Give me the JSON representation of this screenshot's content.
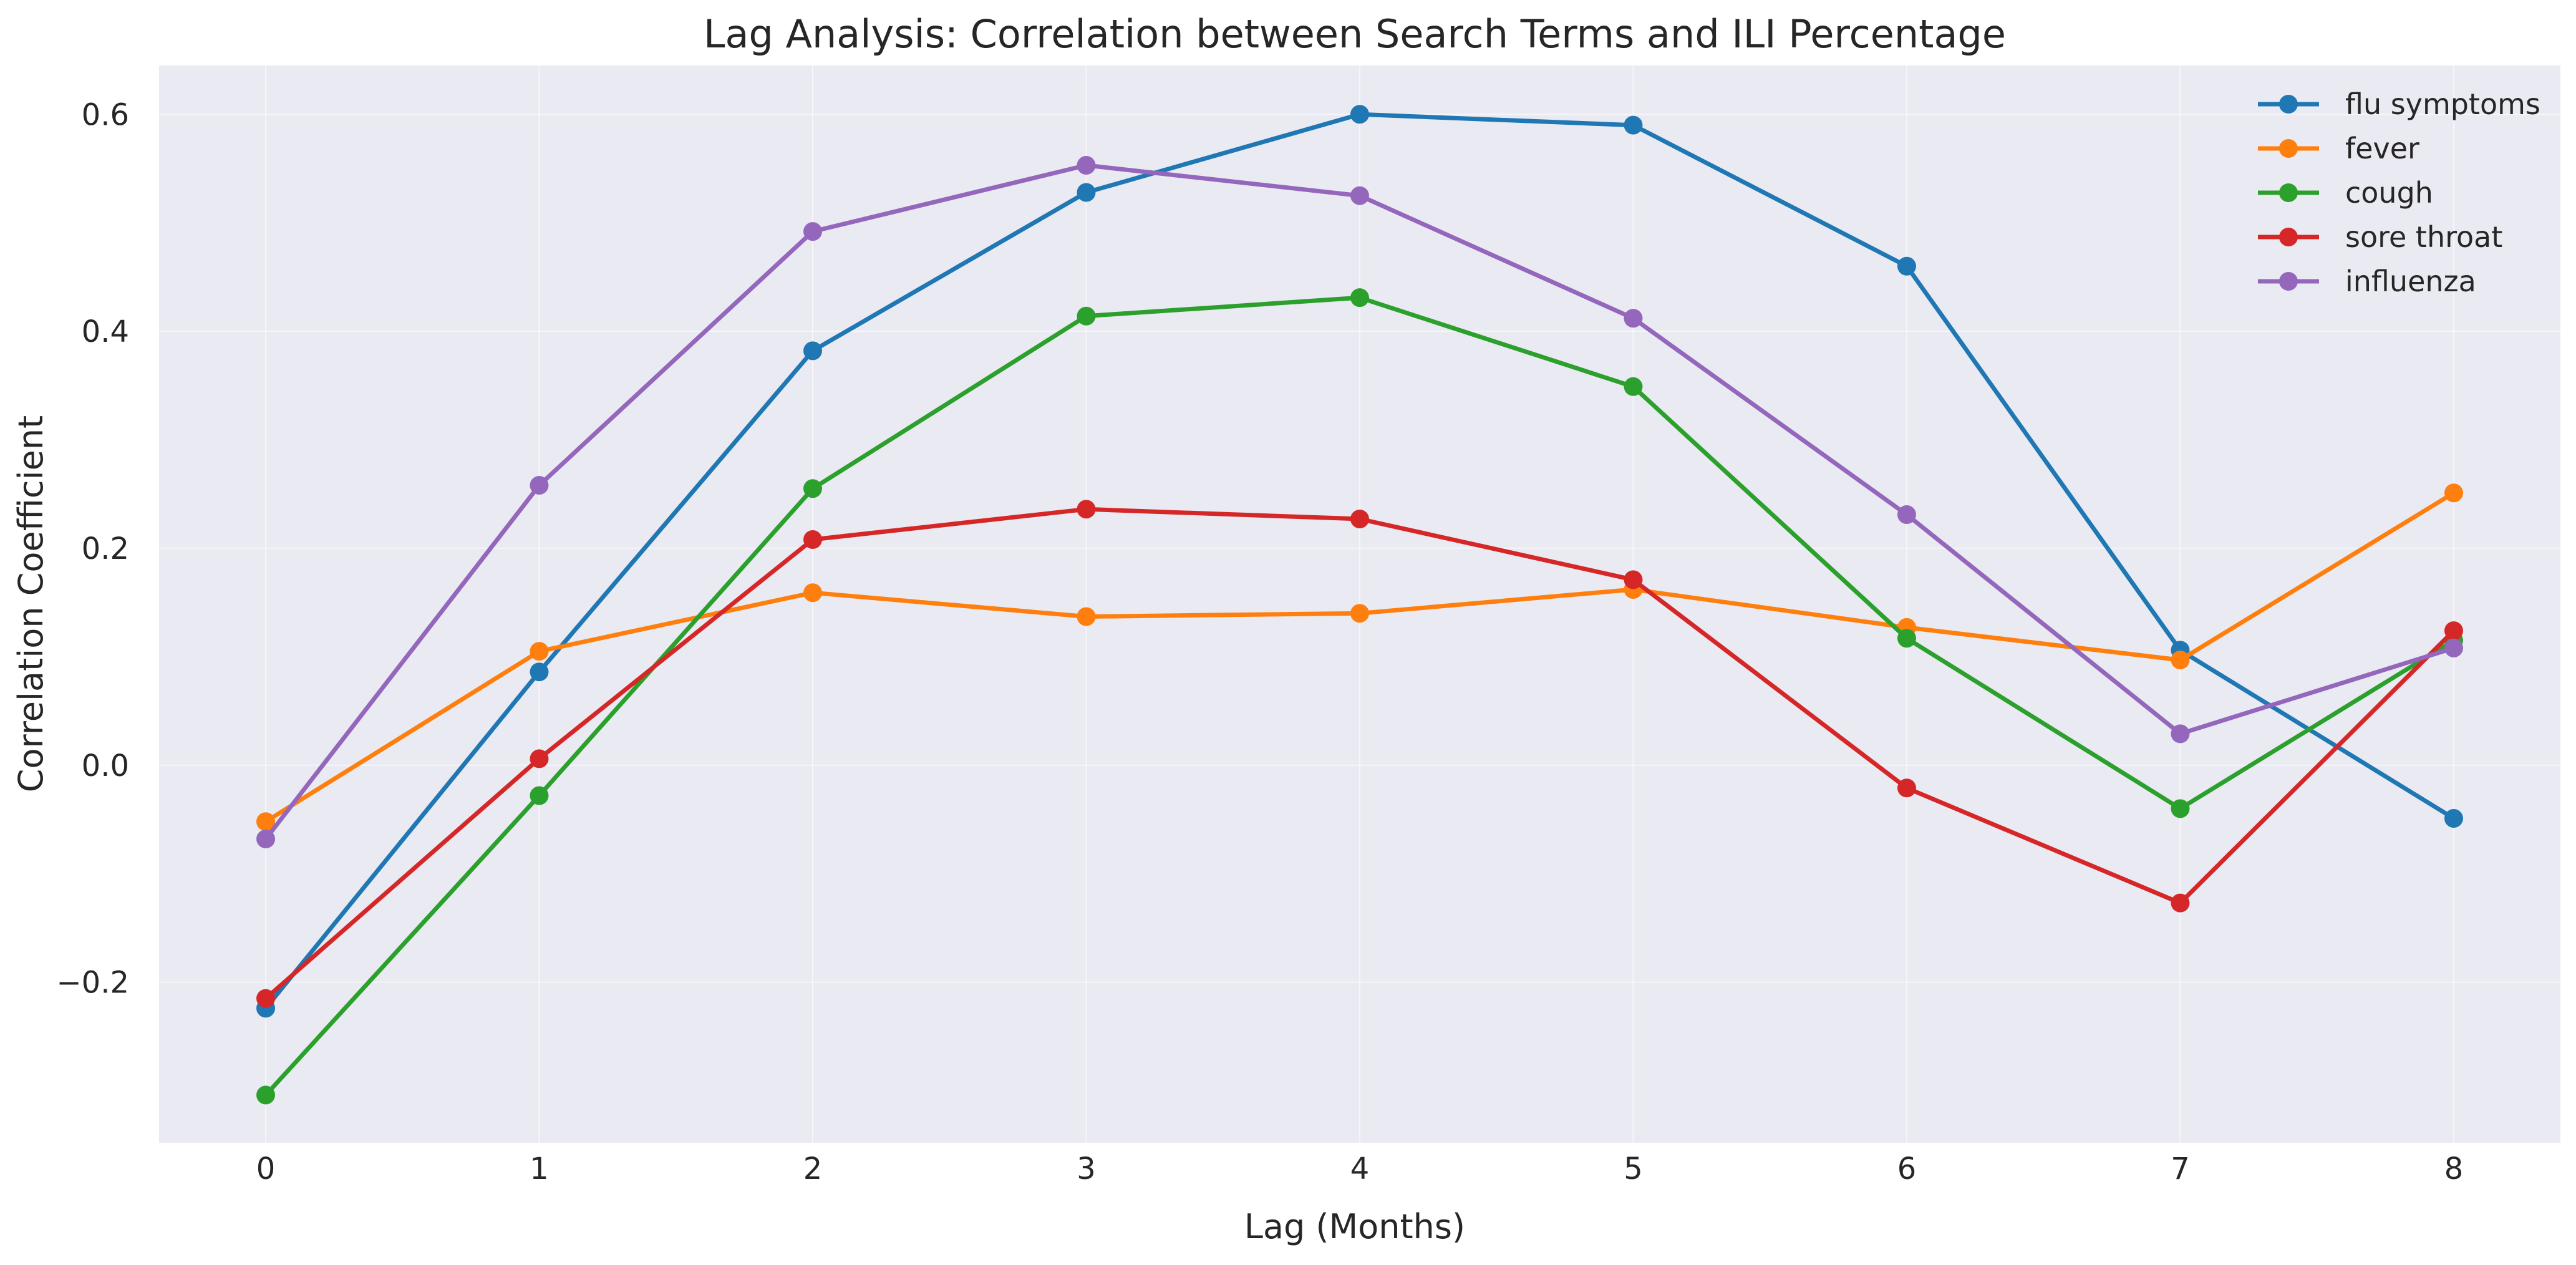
{
  "chart_data": {
    "type": "line",
    "title": "Lag Analysis: Correlation between Search Terms and ILI Percentage",
    "xlabel": "Lag (Months)",
    "ylabel": "Correlation Coefficient",
    "x": [
      0,
      1,
      2,
      3,
      4,
      5,
      6,
      7,
      8
    ],
    "xlim": [
      -0.39,
      8.39
    ],
    "ylim": [
      -0.348,
      0.645
    ],
    "yticks": [
      -0.2,
      0.0,
      0.2,
      0.4,
      0.6
    ],
    "ytick_labels": [
      "−0.2",
      "0.0",
      "0.2",
      "0.4",
      "0.6"
    ],
    "xtick_labels": [
      "0",
      "1",
      "2",
      "3",
      "4",
      "5",
      "6",
      "7",
      "8"
    ],
    "grid": true,
    "legend_position": "top-right",
    "background_color": "#eaeaf2",
    "series": [
      {
        "name": "flu symptoms",
        "color": "#1f77b4",
        "values": [
          -0.224,
          0.086,
          0.382,
          0.528,
          0.6,
          0.59,
          0.46,
          0.106,
          -0.049
        ]
      },
      {
        "name": "fever",
        "color": "#ff7f0e",
        "values": [
          -0.052,
          0.105,
          0.159,
          0.137,
          0.14,
          0.162,
          0.127,
          0.097,
          0.251
        ]
      },
      {
        "name": "cough",
        "color": "#2ca02c",
        "values": [
          -0.304,
          -0.028,
          0.255,
          0.414,
          0.431,
          0.349,
          0.117,
          -0.04,
          0.115
        ]
      },
      {
        "name": "sore throat",
        "color": "#d62728",
        "values": [
          -0.215,
          0.006,
          0.208,
          0.236,
          0.227,
          0.171,
          -0.021,
          -0.127,
          0.124
        ]
      },
      {
        "name": "influenza",
        "color": "#9467bd",
        "values": [
          -0.068,
          0.258,
          0.492,
          0.553,
          0.525,
          0.412,
          0.231,
          0.029,
          0.108
        ]
      }
    ]
  }
}
